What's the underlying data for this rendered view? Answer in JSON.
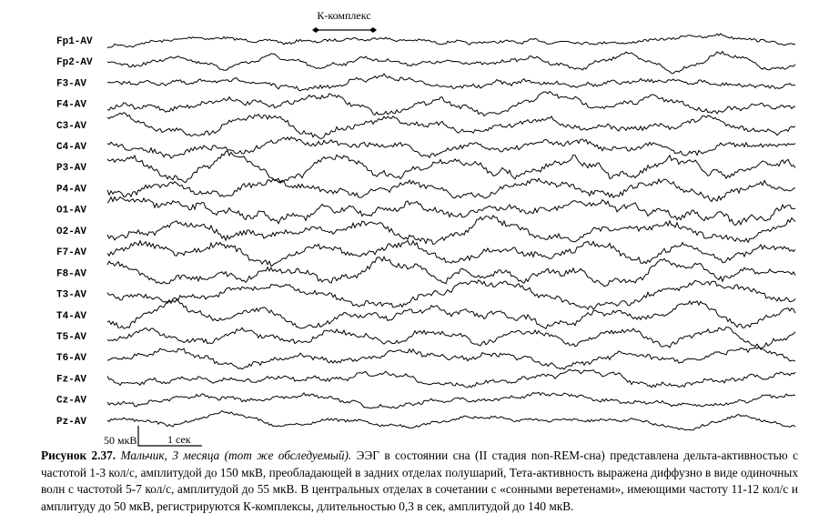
{
  "figure": {
    "k_complex_label": "К-комплекс",
    "channels": [
      "Fp1-AV",
      "Fp2-AV",
      "F3-AV",
      "F4-AV",
      "C3-AV",
      "C4-AV",
      "P3-AV",
      "P4-AV",
      "O1-AV",
      "O2-AV",
      "F7-AV",
      "F8-AV",
      "T3-AV",
      "T4-AV",
      "T5-AV",
      "T6-AV",
      "Fz-AV",
      "Cz-AV",
      "Pz-AV"
    ],
    "scale": {
      "amplitude": "50 мкВ",
      "time": "1 сек"
    }
  },
  "caption": {
    "number": "Рисунок 2.37.",
    "subject": "Мальчик, 3 месяца (тот же обследуемый).",
    "text": "ЭЭГ в состоянии сна (II стадия non-REM-сна) представлена дельта-активностью с частотой 1-3 кол/с, амплитудой до 150 мкВ, преобладающей в задних отделах полушарий, Тета-активность выражена диффузно в виде одиночных волн с частотой 5-7 кол/с, амплитудой до 55 мкВ. В центральных отделах в сочетании с «сонными веретенами», имеющими частоту 11-12 кол/с и амплитуду до 50 мкВ, регистрируются К-комплексы, длительностью 0,3 в сек, амплитудой до 140 мкВ."
  }
}
